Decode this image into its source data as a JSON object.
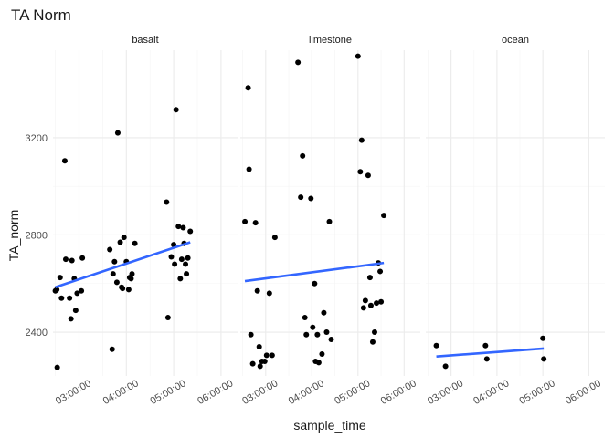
{
  "chart_data": {
    "type": "scatter",
    "title": "TA Norm",
    "xlabel": "sample_time",
    "ylabel": "TA_norm",
    "ylim": [
      2220,
      3560
    ],
    "xlim": [
      2.45,
      6.35
    ],
    "x_ticks": [
      3,
      4,
      5,
      6
    ],
    "x_tick_labels": [
      "03:00:00",
      "04:00:00",
      "05:00:00",
      "06:00:00"
    ],
    "y_ticks": [
      2400,
      2800,
      3200
    ],
    "y_tick_labels": [
      "2400",
      "2800",
      "3200"
    ],
    "grid": true,
    "legend": "none",
    "point_color": "#000000",
    "fit_color": "#3366ff",
    "facets": [
      {
        "name": "basalt",
        "points": [
          [
            2.5,
            2570
          ],
          [
            2.53,
            2575
          ],
          [
            2.54,
            2255
          ],
          [
            2.6,
            2625
          ],
          [
            2.63,
            2540
          ],
          [
            2.7,
            3105
          ],
          [
            2.72,
            2700
          ],
          [
            2.8,
            2540
          ],
          [
            2.83,
            2455
          ],
          [
            2.85,
            2695
          ],
          [
            2.9,
            2620
          ],
          [
            2.93,
            2490
          ],
          [
            2.96,
            2560
          ],
          [
            3.05,
            2570
          ],
          [
            3.07,
            2705
          ],
          [
            3.65,
            2740
          ],
          [
            3.7,
            2330
          ],
          [
            3.72,
            2640
          ],
          [
            3.75,
            2690
          ],
          [
            3.8,
            2605
          ],
          [
            3.82,
            3220
          ],
          [
            3.87,
            2770
          ],
          [
            3.9,
            2585
          ],
          [
            3.92,
            2580
          ],
          [
            3.95,
            2790
          ],
          [
            4.0,
            2690
          ],
          [
            4.05,
            2575
          ],
          [
            4.07,
            2625
          ],
          [
            4.1,
            2620
          ],
          [
            4.12,
            2640
          ],
          [
            4.18,
            2765
          ],
          [
            4.85,
            2935
          ],
          [
            4.88,
            2460
          ],
          [
            4.95,
            2710
          ],
          [
            5.0,
            2760
          ],
          [
            5.02,
            2680
          ],
          [
            5.05,
            3315
          ],
          [
            5.1,
            2835
          ],
          [
            5.14,
            2620
          ],
          [
            5.17,
            2700
          ],
          [
            5.2,
            2830
          ],
          [
            5.22,
            2765
          ],
          [
            5.25,
            2680
          ],
          [
            5.27,
            2640
          ],
          [
            5.3,
            2705
          ],
          [
            5.35,
            2815
          ]
        ],
        "fit": {
          "x": [
            2.5,
            5.35
          ],
          "y": [
            2585,
            2770
          ]
        }
      },
      {
        "name": "limestone",
        "points": [
          [
            2.55,
            2855
          ],
          [
            2.62,
            3405
          ],
          [
            2.64,
            3070
          ],
          [
            2.68,
            2390
          ],
          [
            2.72,
            2270
          ],
          [
            2.78,
            2850
          ],
          [
            2.82,
            2570
          ],
          [
            2.86,
            2340
          ],
          [
            2.88,
            2260
          ],
          [
            2.92,
            2280
          ],
          [
            2.98,
            2280
          ],
          [
            3.02,
            2305
          ],
          [
            3.08,
            2560
          ],
          [
            3.14,
            2305
          ],
          [
            3.2,
            2790
          ],
          [
            3.7,
            3510
          ],
          [
            3.76,
            2955
          ],
          [
            3.8,
            3125
          ],
          [
            3.85,
            2460
          ],
          [
            3.88,
            2390
          ],
          [
            3.98,
            2950
          ],
          [
            4.02,
            2420
          ],
          [
            4.06,
            2600
          ],
          [
            4.08,
            2280
          ],
          [
            4.12,
            2390
          ],
          [
            4.15,
            2275
          ],
          [
            4.22,
            2310
          ],
          [
            4.26,
            2480
          ],
          [
            4.32,
            2400
          ],
          [
            4.38,
            2855
          ],
          [
            4.42,
            2370
          ],
          [
            5.0,
            3535
          ],
          [
            5.05,
            3060
          ],
          [
            5.08,
            3190
          ],
          [
            5.12,
            2500
          ],
          [
            5.16,
            2530
          ],
          [
            5.22,
            3045
          ],
          [
            5.26,
            2625
          ],
          [
            5.28,
            2510
          ],
          [
            5.32,
            2360
          ],
          [
            5.36,
            2400
          ],
          [
            5.4,
            2520
          ],
          [
            5.44,
            2685
          ],
          [
            5.48,
            2650
          ],
          [
            5.5,
            2525
          ],
          [
            5.56,
            2880
          ]
        ],
        "fit": {
          "x": [
            2.55,
            5.56
          ],
          "y": [
            2610,
            2685
          ]
        }
      },
      {
        "name": "ocean",
        "points": [
          [
            2.68,
            2345
          ],
          [
            2.88,
            2260
          ],
          [
            3.75,
            2345
          ],
          [
            3.78,
            2290
          ],
          [
            5.0,
            2375
          ],
          [
            5.02,
            2290
          ]
        ],
        "fit": {
          "x": [
            2.68,
            5.02
          ],
          "y": [
            2300,
            2333
          ]
        }
      }
    ]
  }
}
